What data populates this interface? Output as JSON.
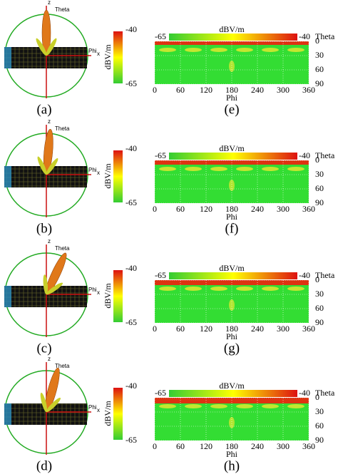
{
  "panels_left": [
    {
      "label": "(a)",
      "axes": {
        "z": "z",
        "theta": "Theta",
        "phi": "Phi",
        "x": "x"
      },
      "colorbar": {
        "max": -40,
        "unit": "dBV/m",
        "min": -65
      }
    },
    {
      "label": "(b)",
      "axes": {
        "z": "z",
        "theta": "Theta",
        "phi": "Phi",
        "x": "x"
      },
      "colorbar": {
        "max": -40,
        "unit": "dBV/m",
        "min": -65
      }
    },
    {
      "label": "(c)",
      "axes": {
        "z": "z",
        "theta": "Theta",
        "phi": "Phi",
        "x": "x"
      },
      "colorbar": {
        "max": -40,
        "unit": "dBV/m",
        "min": -65
      }
    },
    {
      "label": "(d)",
      "axes": {
        "z": "z",
        "theta": "Theta",
        "phi": "Phi",
        "x": "x"
      },
      "colorbar": {
        "max": -40,
        "unit": "dBV/m",
        "min": -65
      }
    }
  ],
  "panels_right": [
    {
      "label": "(e)",
      "colorbar": {
        "min": -65,
        "unit": "dBV/m",
        "max": -40
      },
      "y_title": "Theta",
      "yticks": [
        0,
        30,
        60,
        90
      ],
      "x_title": "Phi",
      "xticks": [
        0,
        60,
        120,
        180,
        240,
        300,
        360
      ]
    },
    {
      "label": "(f)",
      "colorbar": {
        "min": -65,
        "unit": "dBV/m",
        "max": -40
      },
      "y_title": "Theta",
      "yticks": [
        0,
        30,
        60,
        90
      ],
      "x_title": "Phi",
      "xticks": [
        0,
        60,
        120,
        180,
        240,
        300,
        360
      ]
    },
    {
      "label": "(g)",
      "colorbar": {
        "min": -65,
        "unit": "dBV/m",
        "max": -40
      },
      "y_title": "Theta",
      "yticks": [
        0,
        30,
        60,
        90
      ],
      "x_title": "Phi",
      "xticks": [
        0,
        60,
        120,
        180,
        240,
        300,
        360
      ]
    },
    {
      "label": "(h)",
      "colorbar": {
        "min": -65,
        "unit": "dBV/m",
        "max": -40
      },
      "y_title": "Theta",
      "yticks": [
        0,
        30,
        60,
        90
      ],
      "x_title": "Phi",
      "xticks": [
        0,
        60,
        120,
        180,
        240,
        300,
        360
      ]
    }
  ]
}
